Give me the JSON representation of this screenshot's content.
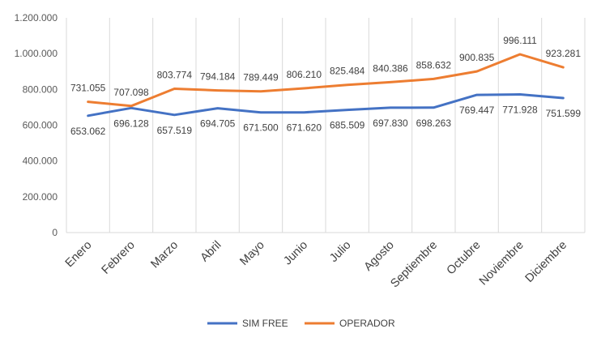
{
  "chart_data": {
    "type": "line",
    "title": "",
    "xlabel": "",
    "ylabel": "",
    "categories": [
      "Enero",
      "Febrero",
      "Marzo",
      "Abril",
      "Mayo",
      "Junio",
      "Julio",
      "Agosto",
      "Septiembre",
      "Octubre",
      "Noviembre",
      "Diciembre"
    ],
    "ylim": [
      0,
      1200000
    ],
    "yticks": [
      0,
      200000,
      400000,
      600000,
      800000,
      1000000,
      1200000
    ],
    "ytick_labels": [
      "0",
      "200.000",
      "400.000",
      "600.000",
      "800.000",
      "1.000.000",
      "1.200.000"
    ],
    "grid": "vertical",
    "legend_position": "bottom",
    "series": [
      {
        "name": "SIM FREE",
        "color": "#4472c4",
        "label_position": "below",
        "values": [
          653062,
          696128,
          657519,
          694705,
          671500,
          671620,
          685509,
          697830,
          698263,
          769447,
          771928,
          751599
        ],
        "labels": [
          "653.062",
          "696.128",
          "657.519",
          "694.705",
          "671.500",
          "671.620",
          "685.509",
          "697.830",
          "698.263",
          "769.447",
          "771.928",
          "751.599"
        ]
      },
      {
        "name": "OPERADOR",
        "color": "#ed7d31",
        "label_position": "above",
        "values": [
          731055,
          707098,
          803774,
          794184,
          789449,
          806210,
          825484,
          840386,
          858632,
          900835,
          996111,
          923281
        ],
        "labels": [
          "731.055",
          "707.098",
          "803.774",
          "794.184",
          "789.449",
          "806.210",
          "825.484",
          "840.386",
          "858.632",
          "900.835",
          "996.111",
          "923.281"
        ]
      }
    ]
  }
}
